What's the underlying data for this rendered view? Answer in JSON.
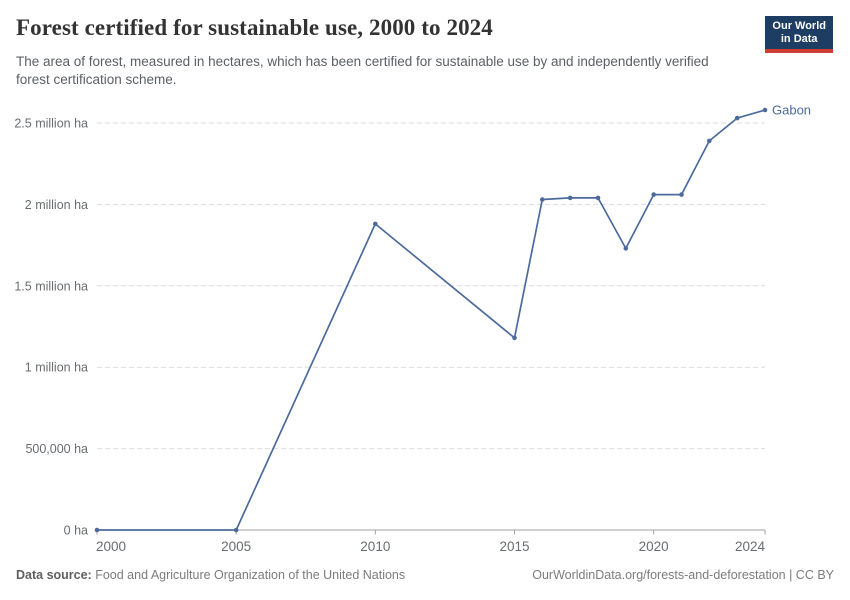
{
  "header": {
    "title": "Forest certified for sustainable use, 2000 to 2024",
    "subtitle": "The area of forest, measured in hectares, which has been certified for sustainable use by and independently verified forest certification scheme.",
    "logo": {
      "line1": "Our World",
      "line2": "in Data"
    }
  },
  "footer": {
    "source_label": "Data source:",
    "source_text": "Food and Agriculture Organization of the United Nations",
    "citation_text": "OurWorldinData.org/forests-and-deforestation | CC BY"
  },
  "colors": {
    "series_blue": "#4c6a9c",
    "gridline": "#dcdcdc",
    "axis": "#a1a1a1",
    "tick_label": "#696c70",
    "logo_navy": "#1d3d63",
    "logo_red": "#cf3c32"
  },
  "chart_data": {
    "type": "line",
    "title": "Forest certified for sustainable use, 2000 to 2024",
    "entity_label": "Gabon",
    "x": [
      2000,
      2005,
      2010,
      2015,
      2016,
      2017,
      2018,
      2019,
      2020,
      2021,
      2022,
      2023,
      2024
    ],
    "series": [
      {
        "name": "Gabon",
        "color": "#4c6a9c",
        "values": [
          0,
          0,
          1880000,
          1180000,
          2030000,
          2040000,
          2040000,
          1730000,
          2060000,
          2060000,
          2390000,
          2530000,
          2580000
        ]
      }
    ],
    "xlabel": "",
    "ylabel": "",
    "xlim": [
      2000,
      2024
    ],
    "ylim": [
      0,
      2500000
    ],
    "grid": "horizontal-dashed",
    "legend_position": "end-of-line",
    "y_ticks": [
      {
        "value": 0,
        "label": "0 ha"
      },
      {
        "value": 500000,
        "label": "500,000 ha"
      },
      {
        "value": 1000000,
        "label": "1 million ha"
      },
      {
        "value": 1500000,
        "label": "1.5 million ha"
      },
      {
        "value": 2000000,
        "label": "2 million ha"
      },
      {
        "value": 2500000,
        "label": "2.5 million ha"
      }
    ],
    "x_ticks": [
      {
        "value": 2000,
        "label": "2000"
      },
      {
        "value": 2005,
        "label": "2005"
      },
      {
        "value": 2010,
        "label": "2010"
      },
      {
        "value": 2015,
        "label": "2015"
      },
      {
        "value": 2020,
        "label": "2020"
      },
      {
        "value": 2024,
        "label": "2024"
      }
    ]
  }
}
